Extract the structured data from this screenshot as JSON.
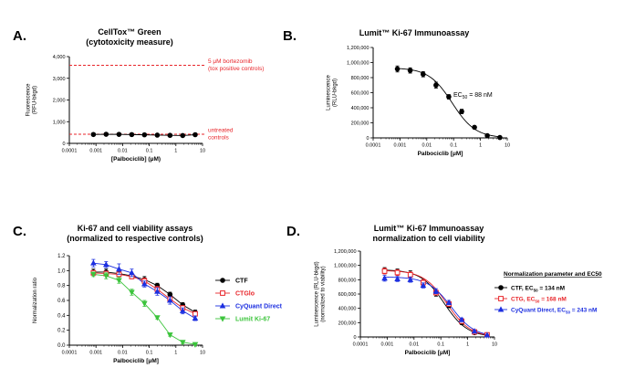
{
  "panels": [
    {
      "letter": "A.",
      "title": [
        "CellTox™ Green",
        "(cytotoxicity measure)"
      ]
    },
    {
      "letter": "B.",
      "title": [
        "Lumit™ Ki-67 Immunoassay"
      ]
    },
    {
      "letter": "C.",
      "title": [
        "Ki-67 and cell viability assays",
        "(normalized to respective controls)"
      ]
    },
    {
      "letter": "D.",
      "title": [
        "Lumit™ Ki-67 Immunoassay",
        "normalization to cell viability"
      ]
    }
  ],
  "colors": {
    "black": "#000000",
    "red": "#e8262b",
    "blue": "#1c2fe0",
    "green": "#3cc43c",
    "ref_line": "#e8262b"
  },
  "chart_data": [
    {
      "type": "line",
      "panel": "A",
      "title": "CellTox™ Green (cytotoxicity measure)",
      "xlabel": "[Palbociclib] (μM)",
      "ylabel": [
        "Fluorescence",
        "(RFU-bkgd)"
      ],
      "xscale": "log",
      "xlim": [
        0.0001,
        10
      ],
      "xticks": [
        "0.0001",
        "0.001",
        "0.01",
        "0.1",
        "1",
        "10"
      ],
      "ylim": [
        0,
        4000
      ],
      "yticks": [
        "0",
        "1,000",
        "2,000",
        "3,000",
        "4,000"
      ],
      "grid": false,
      "series": [
        {
          "color": "black",
          "marker": "circle",
          "x": [
            0.0008,
            0.0024,
            0.0073,
            0.022,
            0.066,
            0.2,
            0.6,
            1.8,
            5.3
          ],
          "y": [
            410,
            420,
            415,
            405,
            395,
            380,
            370,
            360,
            400
          ],
          "err": [
            35,
            30,
            30,
            30,
            30,
            30,
            30,
            30,
            35
          ]
        }
      ],
      "reference_lines": [
        {
          "y": 3600,
          "label": [
            "5 μM bortezomib",
            "(tox positive controls)"
          ]
        },
        {
          "y": 420,
          "label": [
            "untreated",
            "controls"
          ]
        }
      ]
    },
    {
      "type": "line",
      "panel": "B",
      "title": "Lumit™ Ki-67 Immunoassay",
      "xlabel": "Palbociclib [μM]",
      "ylabel": [
        "Luminescence",
        "(RLU-bkgd)"
      ],
      "xscale": "log",
      "xlim": [
        0.0001,
        10
      ],
      "xticks": [
        "0.0001",
        "0.001",
        "0.01",
        "0.1",
        "1",
        "10"
      ],
      "ylim": [
        0,
        1200000
      ],
      "yticks": [
        "0",
        "200,000",
        "400,000",
        "600,000",
        "800,000",
        "1,000,000",
        "1,200,000"
      ],
      "grid": false,
      "annotation": {
        "prefix": "EC",
        "sub": "50",
        "suffix": " = 88 nM"
      },
      "series": [
        {
          "color": "black",
          "marker": "circle",
          "fit": {
            "top": 930000,
            "bottom": 0,
            "ec50": 0.088,
            "hill": 1.0
          },
          "x": [
            0.0008,
            0.0024,
            0.0073,
            0.022,
            0.066,
            0.2,
            0.6,
            1.8,
            5.3
          ],
          "y": [
            915000,
            895000,
            845000,
            700000,
            545000,
            350000,
            140000,
            30000,
            5000
          ],
          "err": [
            40000,
            35000,
            35000,
            40000,
            30000,
            30000,
            20000,
            10000,
            5000
          ]
        }
      ]
    },
    {
      "type": "line",
      "panel": "C",
      "title": "Ki-67 and cell viability assays (normalized to respective controls)",
      "xlabel": "Palbociclib [μM]",
      "ylabel": [
        "Normalization ratio"
      ],
      "xscale": "log",
      "xlim": [
        0.0001,
        10
      ],
      "xticks": [
        "0.0001",
        "0.001",
        "0.01",
        "0.1",
        "1",
        "10"
      ],
      "ylim": [
        0,
        1.2
      ],
      "yticks": [
        "0.0",
        "0.2",
        "0.4",
        "0.6",
        "0.8",
        "1.0",
        "1.2"
      ],
      "grid": false,
      "legend_position": "right",
      "series": [
        {
          "name": "CTF",
          "color": "black",
          "marker": "circle",
          "x": [
            0.0008,
            0.0024,
            0.0073,
            0.022,
            0.066,
            0.2,
            0.6,
            1.8,
            5.3
          ],
          "y": [
            0.98,
            0.98,
            0.96,
            0.93,
            0.88,
            0.8,
            0.68,
            0.54,
            0.44
          ],
          "err": [
            0.04,
            0.04,
            0.03,
            0.03,
            0.04,
            0.03,
            0.03,
            0.03,
            0.03
          ]
        },
        {
          "name": "CTGlo",
          "color": "red",
          "marker": "square-open",
          "x": [
            0.0008,
            0.0024,
            0.0073,
            0.022,
            0.066,
            0.2,
            0.6,
            1.8,
            5.3
          ],
          "y": [
            0.97,
            0.96,
            0.95,
            0.92,
            0.86,
            0.75,
            0.62,
            0.5,
            0.42
          ],
          "err": [
            0.03,
            0.03,
            0.03,
            0.03,
            0.04,
            0.04,
            0.03,
            0.03,
            0.03
          ]
        },
        {
          "name": "CyQuant Direct",
          "color": "blue",
          "marker": "triangle",
          "x": [
            0.0008,
            0.0024,
            0.0073,
            0.022,
            0.066,
            0.2,
            0.6,
            1.8,
            5.3
          ],
          "y": [
            1.1,
            1.08,
            1.02,
            0.97,
            0.82,
            0.72,
            0.6,
            0.46,
            0.36
          ],
          "err": [
            0.05,
            0.04,
            0.07,
            0.05,
            0.04,
            0.05,
            0.05,
            0.04,
            0.03
          ]
        },
        {
          "name": "Lumit Ki-67",
          "color": "green",
          "marker": "triangle-down",
          "x": [
            0.0008,
            0.0024,
            0.0073,
            0.022,
            0.066,
            0.2,
            0.6,
            1.8,
            5.3
          ],
          "y": [
            0.95,
            0.93,
            0.87,
            0.71,
            0.56,
            0.37,
            0.14,
            0.04,
            0.01
          ],
          "err": [
            0.03,
            0.04,
            0.04,
            0.04,
            0.04,
            0.02,
            0.02,
            0.02,
            0.01
          ]
        }
      ]
    },
    {
      "type": "line",
      "panel": "D",
      "title": "Lumit™ Ki-67 Immunoassay normalization to cell viability",
      "xlabel": "Palbociclib [μM]",
      "ylabel": [
        "Luminescence (RLU-bkgd)",
        "(normalized to viability)"
      ],
      "xscale": "log",
      "xlim": [
        0.0001,
        10
      ],
      "xticks": [
        "0.0001",
        "0.001",
        "0.01",
        "0.1",
        "1",
        "10"
      ],
      "ylim": [
        0,
        1200000
      ],
      "yticks": [
        "0",
        "200,000",
        "400,000",
        "600,000",
        "800,000",
        "1,000,000",
        "1,200,000"
      ],
      "grid": false,
      "legend_title": "Normalization parameter and EC50",
      "legend_position": "right",
      "series": [
        {
          "name": "CTF, EC50 = 134 nM",
          "label_parts": [
            "CTF, EC",
            "50",
            " = 134 nM"
          ],
          "color": "black",
          "marker": "circle",
          "fit": {
            "top": 940000,
            "bottom": 0,
            "ec50": 0.134,
            "hill": 1.0
          },
          "x": [
            0.0008,
            0.0024,
            0.0073,
            0.022,
            0.066,
            0.2,
            0.6,
            1.8,
            5.3
          ],
          "y": [
            930000,
            910000,
            880000,
            760000,
            610000,
            440000,
            200000,
            60000,
            30000
          ],
          "err": [
            40000,
            40000,
            45000,
            40000,
            40000,
            30000,
            25000,
            15000,
            10000
          ]
        },
        {
          "name": "CTG, EC50 = 168 nM",
          "label_parts": [
            "CTG, EC",
            "50",
            " = 168 nM"
          ],
          "color": "red",
          "marker": "square-open",
          "fit": {
            "top": 930000,
            "bottom": 0,
            "ec50": 0.168,
            "hill": 1.0
          },
          "x": [
            0.0008,
            0.0024,
            0.0073,
            0.022,
            0.066,
            0.2,
            0.6,
            1.8,
            5.3
          ],
          "y": [
            920000,
            900000,
            870000,
            760000,
            620000,
            460000,
            220000,
            70000,
            30000
          ],
          "err": [
            40000,
            40000,
            40000,
            40000,
            35000,
            30000,
            25000,
            15000,
            10000
          ]
        },
        {
          "name": "CyQuant Direct, EC50 = 243 nM",
          "label_parts": [
            "CyQuant Direct, EC",
            "50",
            " = 243 nM"
          ],
          "color": "blue",
          "marker": "triangle",
          "fit": {
            "top": 840000,
            "bottom": 0,
            "ec50": 0.243,
            "hill": 1.0
          },
          "x": [
            0.0008,
            0.0024,
            0.0073,
            0.022,
            0.066,
            0.2,
            0.6,
            1.8,
            5.3
          ],
          "y": [
            820000,
            810000,
            800000,
            720000,
            640000,
            480000,
            240000,
            80000,
            25000
          ],
          "err": [
            40000,
            35000,
            35000,
            35000,
            35000,
            30000,
            25000,
            15000,
            10000
          ]
        }
      ]
    }
  ]
}
